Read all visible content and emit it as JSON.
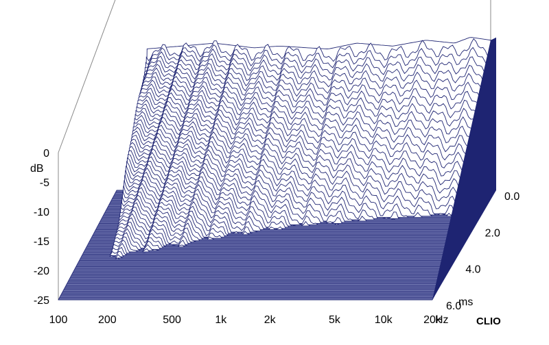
{
  "chart_data": {
    "type": "waterfall-3d",
    "title": "",
    "brand": "CLIO",
    "colors": {
      "trace": "#1e2472",
      "floor": "#8a8fc4",
      "frame": "#888888"
    },
    "x_axis": {
      "scale": "log",
      "range_hz": [
        100,
        20000
      ],
      "ticks": [
        {
          "value": 100,
          "label": "100"
        },
        {
          "value": 200,
          "label": "200"
        },
        {
          "value": 500,
          "label": "500"
        },
        {
          "value": 1000,
          "label": "1k"
        },
        {
          "value": 2000,
          "label": "2k"
        },
        {
          "value": 5000,
          "label": "5k"
        },
        {
          "value": 10000,
          "label": "10k"
        },
        {
          "value": 20000,
          "label": "20k"
        }
      ],
      "unit": "Hz"
    },
    "y_axis": {
      "label": "dB",
      "range_db": [
        -25,
        0
      ],
      "ticks": [
        {
          "value": 0,
          "label": "0"
        },
        {
          "value": -5,
          "label": "-5"
        },
        {
          "value": -10,
          "label": "-10"
        },
        {
          "value": -15,
          "label": "-15"
        },
        {
          "value": -20,
          "label": "-20"
        },
        {
          "value": -25,
          "label": "-25"
        }
      ]
    },
    "z_axis": {
      "range_ms": [
        0,
        6
      ],
      "ticks": [
        {
          "value": 0,
          "label": "0.0"
        },
        {
          "value": 2,
          "label": "2.0"
        },
        {
          "value": 4,
          "label": "4.0"
        },
        {
          "value": 6,
          "label": "6.0"
        }
      ],
      "unit": "ms"
    },
    "slice_count": 90,
    "initial_response_db": [
      {
        "hz": 150,
        "db": -1.0
      },
      {
        "hz": 250,
        "db": -0.5
      },
      {
        "hz": 400,
        "db": 0.0
      },
      {
        "hz": 700,
        "db": -0.8
      },
      {
        "hz": 1000,
        "db": -0.5
      },
      {
        "hz": 2000,
        "db": -1.0
      },
      {
        "hz": 3000,
        "db": 0.0
      },
      {
        "hz": 5000,
        "db": -0.5
      },
      {
        "hz": 8000,
        "db": 0.5
      },
      {
        "hz": 12000,
        "db": 0.0
      },
      {
        "hz": 15000,
        "db": 1.0
      },
      {
        "hz": 20000,
        "db": 0.5
      }
    ]
  }
}
